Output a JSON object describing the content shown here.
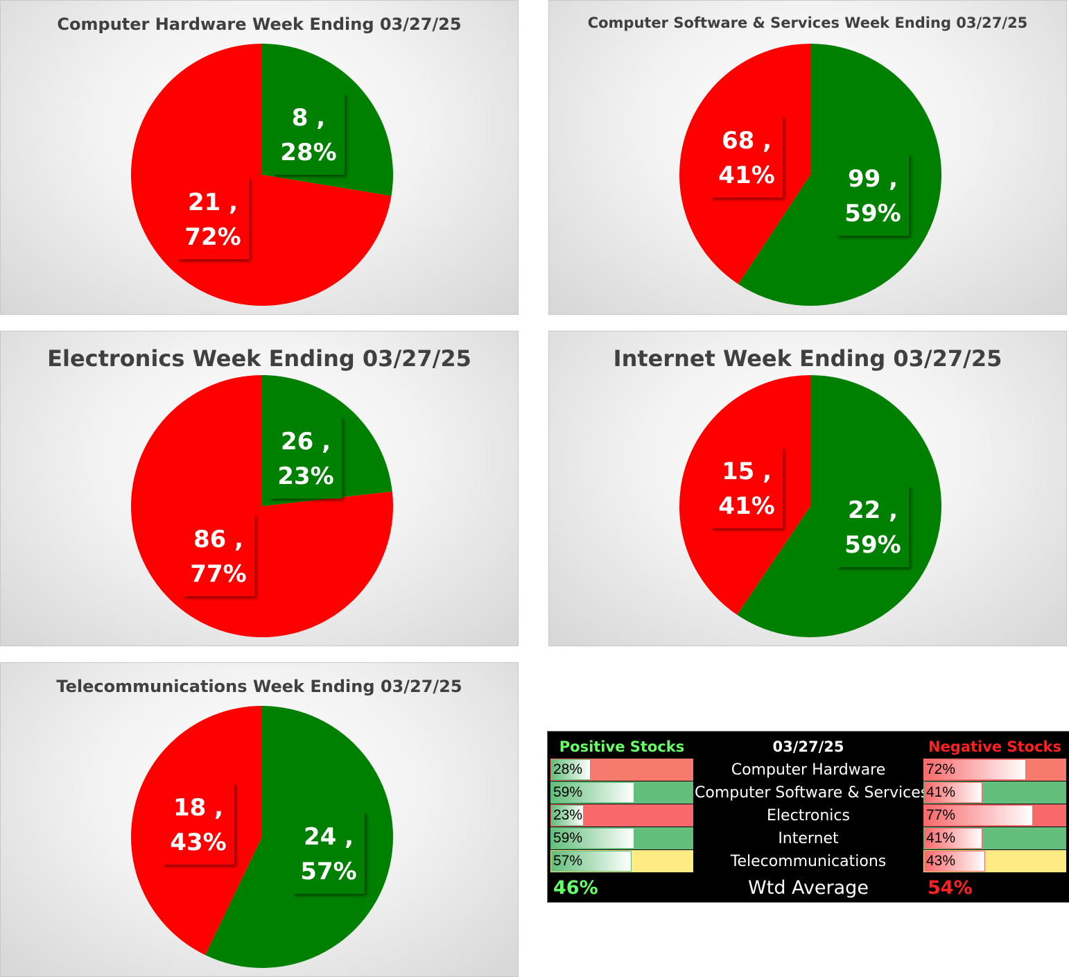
{
  "colors": {
    "positive": "#008000",
    "negative": "#ff0000"
  },
  "chart_data": [
    {
      "type": "pie",
      "title": "Computer Hardware Week Ending 03/27/25",
      "series": [
        {
          "name": "",
          "values": [
            8,
            21
          ],
          "percent_labels": [
            "28%",
            "72%"
          ],
          "colors": [
            "#008000",
            "#ff0000"
          ]
        }
      ]
    },
    {
      "type": "pie",
      "title": "Computer Software & Services Week Ending 03/27/25",
      "series": [
        {
          "name": "",
          "values": [
            99,
            68
          ],
          "percent_labels": [
            "59%",
            "41%"
          ],
          "colors": [
            "#008000",
            "#ff0000"
          ]
        }
      ]
    },
    {
      "type": "pie",
      "title": "Electronics Week Ending 03/27/25",
      "series": [
        {
          "name": "",
          "values": [
            26,
            86
          ],
          "percent_labels": [
            "23%",
            "77%"
          ],
          "colors": [
            "#008000",
            "#ff0000"
          ]
        }
      ]
    },
    {
      "type": "pie",
      "title": "Internet Week Ending 03/27/25",
      "series": [
        {
          "name": "",
          "values": [
            22,
            15
          ],
          "percent_labels": [
            "59%",
            "41%"
          ],
          "colors": [
            "#008000",
            "#ff0000"
          ]
        }
      ]
    },
    {
      "type": "pie",
      "title": "Telecommunications Week Ending 03/27/25",
      "series": [
        {
          "name": "",
          "values": [
            24,
            18
          ],
          "percent_labels": [
            "57%",
            "43%"
          ],
          "colors": [
            "#008000",
            "#ff0000"
          ]
        }
      ]
    }
  ],
  "summary": {
    "positive_header": "Positive Stocks %",
    "date": "03/27/25",
    "negative_header": "Negative Stocks %",
    "rows": [
      {
        "name": "Computer Hardware",
        "positive": "28%",
        "positive_value": 0.28,
        "negative": "72%",
        "negative_value": 0.72
      },
      {
        "name": "Computer Software & Services",
        "positive": "59%",
        "positive_value": 0.59,
        "negative": "41%",
        "negative_value": 0.41
      },
      {
        "name": "Electronics",
        "positive": "23%",
        "positive_value": 0.23,
        "negative": "77%",
        "negative_value": 0.77
      },
      {
        "name": "Internet",
        "positive": "59%",
        "positive_value": 0.59,
        "negative": "41%",
        "negative_value": 0.41
      },
      {
        "name": "Telecommunications",
        "positive": "57%",
        "positive_value": 0.57,
        "negative": "43%",
        "negative_value": 0.43
      }
    ],
    "row_cell_colors": [
      {
        "positive": "#f8796e",
        "negative": "#f8796e"
      },
      {
        "positive": "#63be7b",
        "negative": "#63be7b"
      },
      {
        "positive": "#f8696b",
        "negative": "#f8696b"
      },
      {
        "positive": "#63be7b",
        "negative": "#63be7b"
      },
      {
        "positive": "#ffeb84",
        "negative": "#ffeb84"
      }
    ],
    "average_label": "Wtd Average",
    "average_positive": "46%",
    "average_negative": "54%"
  }
}
